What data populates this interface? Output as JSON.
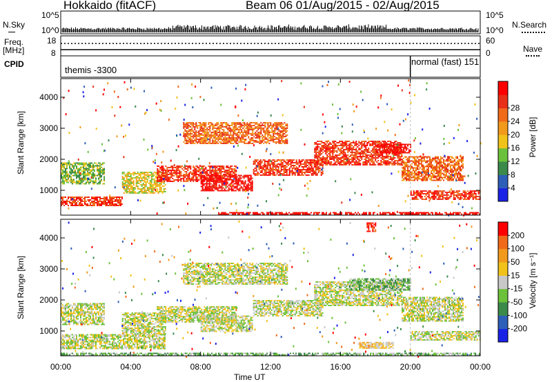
{
  "header": {
    "station": "Hokkaido (fitACF)",
    "beam_date": "Beam 06 01/Aug/2015 - 02/Aug/2015"
  },
  "summary": {
    "nsky_label": "N.Sky",
    "nsky_ticks": [
      "10^5",
      "10^0"
    ],
    "nsearch_label": "N.Search",
    "freq_label": "Freq.",
    "freq_unit": "[MHz]",
    "freq_ticks": [
      "18",
      "8"
    ],
    "nave_ticks": [
      "60",
      "0"
    ],
    "nave_label": "Nave",
    "cpid_label": "CPID",
    "cpid_segments": [
      {
        "name": "themis -3300",
        "start_h": 0,
        "end_h": 20.0
      },
      {
        "name": "normal (fast) 151",
        "start_h": 20.0,
        "end_h": 24
      }
    ]
  },
  "chart_data": [
    {
      "type": "heatmap",
      "panel": "power",
      "ylabel": "Slant Range [km]",
      "yticks": [
        1000,
        2000,
        3000,
        4000
      ],
      "ylim": [
        200,
        4600
      ],
      "xlim_hours": [
        0,
        24
      ],
      "colorbar_label": "Power [dB]",
      "colorbar_ticks": [
        "4",
        "8",
        "12",
        "16",
        "20",
        "24",
        "28"
      ],
      "colorbar_colors": [
        "#1a22e6",
        "#2e5fb8",
        "#3b8a4a",
        "#6cc13a",
        "#f0c21a",
        "#f29a1c",
        "#f06a1a",
        "#e83018",
        "#ff0000"
      ],
      "echo_bands": [
        {
          "t": [
            0,
            2.5
          ],
          "r": [
            1200,
            1900
          ],
          "level": 3
        },
        {
          "t": [
            0,
            3.5
          ],
          "r": [
            500,
            800
          ],
          "level": 7
        },
        {
          "t": [
            3.5,
            6
          ],
          "r": [
            900,
            1600
          ],
          "level": 4
        },
        {
          "t": [
            5.5,
            10
          ],
          "r": [
            1300,
            1800
          ],
          "level": 7
        },
        {
          "t": [
            8,
            11
          ],
          "r": [
            1000,
            1500
          ],
          "level": 8
        },
        {
          "t": [
            7,
            13
          ],
          "r": [
            2500,
            3200
          ],
          "level": 6
        },
        {
          "t": [
            11,
            15
          ],
          "r": [
            1500,
            2000
          ],
          "level": 7
        },
        {
          "t": [
            14.5,
            19.5
          ],
          "r": [
            1800,
            2600
          ],
          "level": 7
        },
        {
          "t": [
            18,
            20
          ],
          "r": [
            2200,
            2500
          ],
          "level": 8
        },
        {
          "t": [
            19.5,
            23
          ],
          "r": [
            1300,
            2100
          ],
          "level": 6
        },
        {
          "t": [
            20,
            24
          ],
          "r": [
            700,
            1000
          ],
          "level": 7
        },
        {
          "t": [
            9,
            24
          ],
          "r": [
            250,
            300
          ],
          "level": 8
        }
      ]
    },
    {
      "type": "heatmap",
      "panel": "velocity",
      "ylabel": "Slant Range [km]",
      "yticks": [
        1000,
        2000,
        3000,
        4000
      ],
      "ylim": [
        200,
        4600
      ],
      "xlim_hours": [
        0,
        24
      ],
      "xticks": [
        "00:00",
        "04:00",
        "08:00",
        "12:00",
        "16:00",
        "20:00",
        "00:00"
      ],
      "xlabel": "Time UT",
      "colorbar_label": "Velocity [m s⁻¹]",
      "colorbar_ticks": [
        "200",
        "100",
        "50",
        "15",
        "-15",
        "-50",
        "-100",
        "-200"
      ],
      "colorbar_colors": [
        "#1a22e6",
        "#2e5fb8",
        "#3b8a4a",
        "#6cc13a",
        "#c8c8c8",
        "#f0c21a",
        "#f29a1c",
        "#f06a1a",
        "#ff0000"
      ],
      "echo_bands": [
        {
          "t": [
            0,
            2.5
          ],
          "r": [
            1200,
            1900
          ],
          "level": 4
        },
        {
          "t": [
            0,
            6
          ],
          "r": [
            450,
            900
          ],
          "level": 4
        },
        {
          "t": [
            3.5,
            6
          ],
          "r": [
            900,
            1600
          ],
          "level": 4
        },
        {
          "t": [
            5.5,
            10
          ],
          "r": [
            1300,
            1800
          ],
          "level": 4
        },
        {
          "t": [
            8,
            11
          ],
          "r": [
            1000,
            1500
          ],
          "level": 4
        },
        {
          "t": [
            7,
            13
          ],
          "r": [
            2500,
            3200
          ],
          "level": 4
        },
        {
          "t": [
            11,
            15
          ],
          "r": [
            1500,
            2000
          ],
          "level": 4
        },
        {
          "t": [
            14.5,
            19.5
          ],
          "r": [
            1800,
            2600
          ],
          "level": 4
        },
        {
          "t": [
            16.5,
            20
          ],
          "r": [
            2300,
            2700
          ],
          "level": 3
        },
        {
          "t": [
            19.5,
            23
          ],
          "r": [
            1300,
            2100
          ],
          "level": 4
        },
        {
          "t": [
            20,
            24
          ],
          "r": [
            700,
            1000
          ],
          "level": 4
        },
        {
          "t": [
            0,
            24
          ],
          "r": [
            220,
            300
          ],
          "level": 3
        },
        {
          "t": [
            17,
            19
          ],
          "r": [
            450,
            650
          ],
          "level": 5
        },
        {
          "t": [
            17.5,
            18
          ],
          "r": [
            4200,
            4500
          ],
          "level": 8
        }
      ]
    }
  ]
}
